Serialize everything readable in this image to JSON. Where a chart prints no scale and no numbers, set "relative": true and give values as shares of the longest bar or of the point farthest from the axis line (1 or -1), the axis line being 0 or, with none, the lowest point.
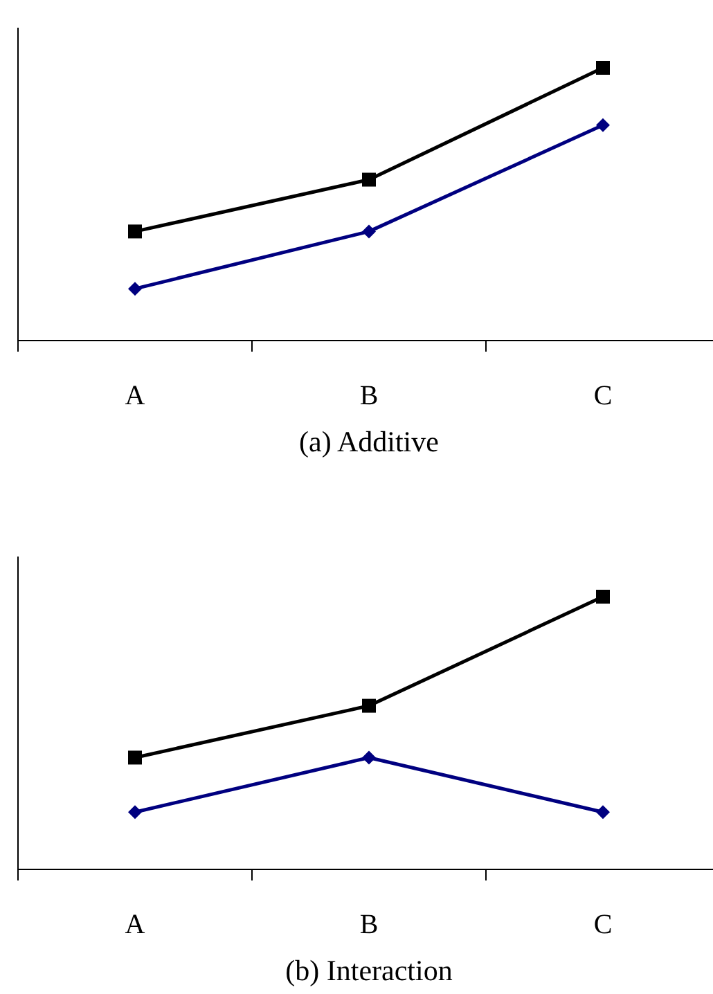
{
  "chart_data": [
    {
      "type": "line",
      "relative": true,
      "xlabel": "(a) Additive",
      "categories": [
        "A",
        "B",
        "C"
      ],
      "series": [
        {
          "color": "#000000",
          "marker": "square",
          "values": [
            0.4,
            0.59,
            1
          ]
        },
        {
          "color": "#000080",
          "marker": "diamond",
          "values": [
            0.19,
            0.4,
            0.79
          ]
        }
      ]
    },
    {
      "type": "line",
      "relative": true,
      "xlabel": "(b) Interaction",
      "categories": [
        "A",
        "B",
        "C"
      ],
      "series": [
        {
          "color": "#000000",
          "marker": "square",
          "values": [
            0.41,
            0.6,
            1
          ]
        },
        {
          "color": "#000080",
          "marker": "diamond",
          "values": [
            0.21,
            0.41,
            0.21
          ]
        }
      ]
    }
  ]
}
